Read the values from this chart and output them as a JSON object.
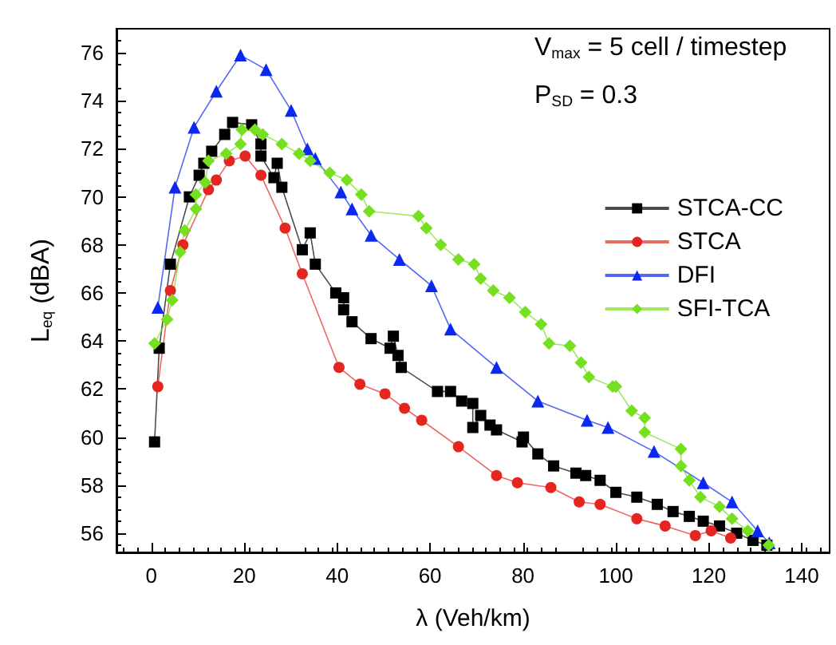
{
  "chart_data": {
    "type": "line",
    "xlabel": "λ (Veh/km)",
    "ylabel": "L$_{eq}$ (dBA)",
    "annotations": [
      "V$_{max}$ = 5 cell / timestep",
      "P$_{SD}$ = 0.3"
    ],
    "xlim": [
      -7.5,
      146
    ],
    "xticks": [
      0,
      20,
      40,
      60,
      80,
      100,
      120,
      140
    ],
    "ylim": [
      55.2,
      77
    ],
    "yticks": [
      56,
      58,
      60,
      62,
      64,
      66,
      68,
      70,
      72,
      74,
      76
    ],
    "grid": false,
    "legend": "top right",
    "series": [
      {
        "name": "STCA-CC",
        "color": "#000000",
        "marker": "square",
        "x": [
          0.7,
          1.7,
          4.1,
          8.2,
          10.3,
          11.3,
          13,
          15.8,
          17.5,
          21.6,
          23.6,
          23.6,
          26.4,
          27.1,
          28.1,
          32.5,
          34.2,
          35.3,
          39.7,
          41.4,
          41.4,
          43.2,
          47.3,
          51.4,
          52.1,
          53.1,
          53.8,
          61.6,
          64.4,
          66.8,
          69.2,
          69.2,
          70.9,
          72.9,
          74.3,
          79.8,
          80.1,
          83.2,
          86.6,
          91.4,
          93.5,
          96.6,
          100,
          104.5,
          108.9,
          112.3,
          115.8,
          118.8,
          122.3,
          126,
          129.5,
          132.5
        ],
        "values": [
          59.8,
          63.7,
          67.2,
          70.0,
          70.9,
          71.4,
          71.9,
          72.6,
          73.1,
          73.0,
          72.2,
          71.7,
          70.8,
          71.4,
          70.4,
          67.8,
          68.5,
          67.2,
          66.0,
          65.8,
          65.3,
          64.8,
          64.1,
          63.7,
          64.2,
          63.4,
          62.9,
          61.9,
          61.9,
          61.5,
          61.4,
          60.4,
          60.9,
          60.5,
          60.3,
          59.8,
          60.0,
          59.3,
          58.8,
          58.5,
          58.4,
          58.2,
          57.7,
          57.5,
          57.2,
          56.9,
          56.7,
          56.5,
          56.3,
          56.0,
          55.7,
          55.5
        ]
      },
      {
        "name": "STCA",
        "color": "#e52620",
        "marker": "circle",
        "x": [
          1.4,
          4.1,
          6.8,
          12.3,
          14,
          16.8,
          20.2,
          23.6,
          28.8,
          32.5,
          40.4,
          44.9,
          50.3,
          54.5,
          58.2,
          66.1,
          74.3,
          78.8,
          86,
          92.1,
          96.6,
          104.5,
          110.6,
          117.1,
          120.5,
          124.7
        ],
        "values": [
          62.1,
          66.1,
          68.0,
          70.3,
          70.7,
          71.5,
          71.7,
          70.9,
          68.7,
          66.8,
          62.9,
          62.2,
          61.8,
          61.2,
          60.7,
          59.6,
          58.4,
          58.1,
          57.9,
          57.3,
          57.2,
          56.6,
          56.3,
          55.9,
          56.1,
          55.8
        ]
      },
      {
        "name": "DFI",
        "color": "#0a28f0",
        "marker": "triangle",
        "x": [
          1.4,
          5.1,
          9.2,
          14,
          19.2,
          24.7,
          30.1,
          33.6,
          35.3,
          40.8,
          43.2,
          47.3,
          53.4,
          60.3,
          64.4,
          74.3,
          83.2,
          93.8,
          98.3,
          108.2,
          118.8,
          125,
          130.5,
          133
        ],
        "values": [
          65.4,
          70.4,
          72.9,
          74.4,
          75.9,
          75.3,
          73.6,
          72.0,
          71.6,
          70.2,
          69.5,
          68.4,
          67.4,
          66.3,
          64.5,
          62.9,
          61.5,
          60.7,
          60.4,
          59.4,
          58.1,
          57.3,
          56.1,
          55.6
        ]
      },
      {
        "name": "SFI-TCA",
        "color": "#76e020",
        "marker": "diamond",
        "x": [
          0.7,
          3.4,
          4.5,
          6.2,
          7.2,
          9.6,
          9.6,
          11.6,
          12.3,
          16.1,
          19.2,
          19.5,
          22.3,
          24,
          28.1,
          31.8,
          34.2,
          38.4,
          42.1,
          45.2,
          46.9,
          57.5,
          59.2,
          62.3,
          66.1,
          69.5,
          70.9,
          73.6,
          77.1,
          80.5,
          83.9,
          85.6,
          90.1,
          92.5,
          94.2,
          99.3,
          100,
          103.4,
          106.2,
          106.2,
          114,
          114,
          115.8,
          118.2,
          122.3,
          125,
          128.4,
          132.9
        ],
        "values": [
          63.9,
          64.9,
          65.7,
          67.7,
          68.6,
          69.5,
          70.1,
          70.6,
          71.5,
          71.8,
          72.2,
          72.8,
          72.8,
          72.6,
          72.2,
          71.8,
          71.5,
          71.0,
          70.7,
          70.1,
          69.4,
          69.2,
          68.7,
          68.0,
          67.4,
          67.2,
          66.6,
          66.1,
          65.8,
          65.2,
          64.7,
          63.9,
          63.8,
          63.1,
          62.5,
          62.1,
          62.1,
          61.1,
          60.8,
          60.2,
          59.5,
          58.8,
          58.2,
          57.5,
          57.1,
          56.6,
          56.1,
          55.5
        ]
      }
    ]
  }
}
